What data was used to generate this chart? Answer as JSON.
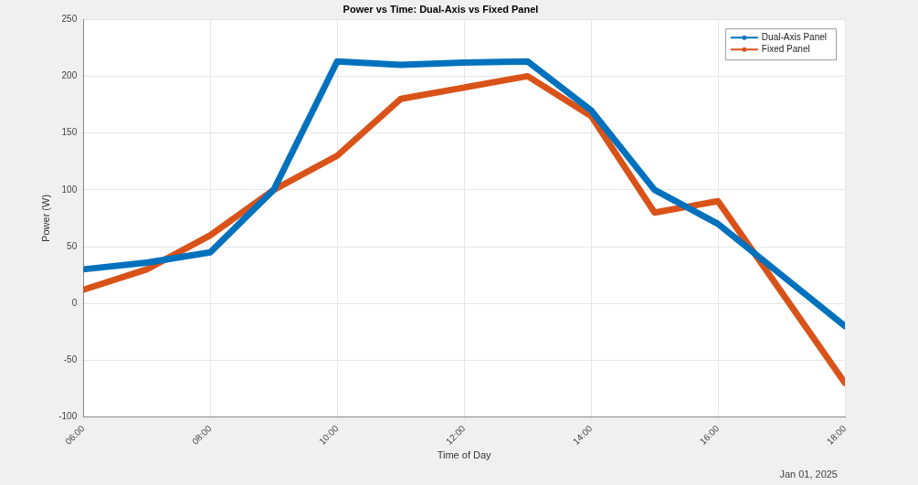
{
  "chart_data": {
    "type": "line",
    "title": "Power vs Time: Dual-Axis vs Fixed Panel",
    "xlabel": "Time of Day",
    "ylabel": "Power (W)",
    "annotations": [
      "Jan 01, 2025"
    ],
    "x": [
      6,
      7,
      8,
      9,
      10,
      11,
      12,
      13,
      14,
      15,
      16,
      17,
      18
    ],
    "series": [
      {
        "name": "Dual-Axis Panel",
        "color": "#0072bd",
        "values": [
          30,
          36,
          45,
          100,
          213,
          210,
          212,
          213,
          170,
          100,
          70,
          25,
          -20
        ]
      },
      {
        "name": "Fixed Panel",
        "color": "#d95319",
        "values": [
          12,
          30,
          60,
          100,
          130,
          180,
          190,
          200,
          165,
          80,
          90,
          10,
          -70
        ]
      }
    ],
    "xlim": [
      6,
      18
    ],
    "xticks": [
      {
        "value": 6,
        "label": "06:00"
      },
      {
        "value": 8,
        "label": "08:00"
      },
      {
        "value": 10,
        "label": "10:00"
      },
      {
        "value": 12,
        "label": "12:00"
      },
      {
        "value": 14,
        "label": "14:00"
      },
      {
        "value": 16,
        "label": "16:00"
      },
      {
        "value": 18,
        "label": "18:00"
      }
    ],
    "ylim": [
      -100,
      250
    ],
    "yticks": [
      -100,
      -50,
      0,
      50,
      100,
      150,
      200,
      250
    ],
    "grid": true,
    "legend": "top right",
    "line_style": "solid"
  }
}
